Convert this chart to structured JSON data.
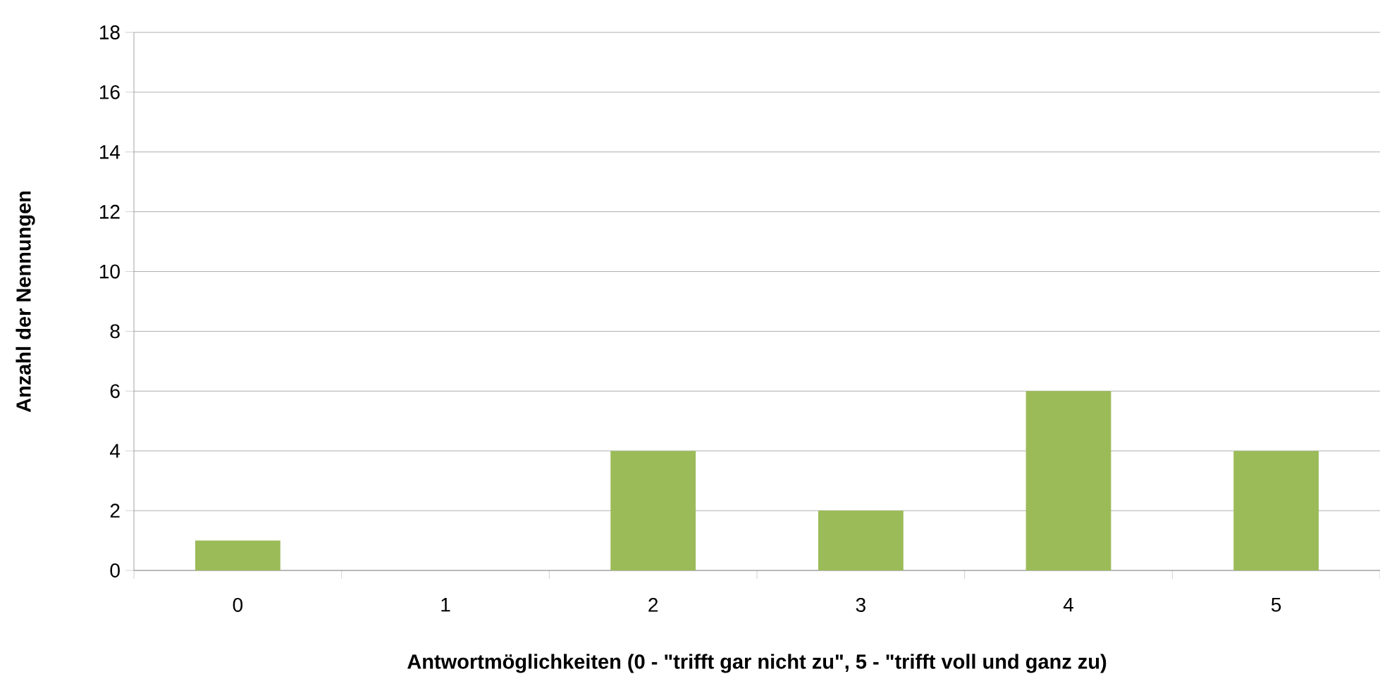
{
  "chart_data": {
    "type": "bar",
    "xlabel": "Antwortmöglichkeiten (0 - \"trifft gar nicht zu\", 5 - \"trifft voll und ganz zu)",
    "ylabel": "Anzahl der Nennungen",
    "categories": [
      "0",
      "1",
      "2",
      "3",
      "4",
      "5"
    ],
    "values": [
      1,
      0,
      4,
      2,
      6,
      4
    ],
    "color": "#9bbb59",
    "ylim": [
      0,
      18
    ],
    "yticks": [
      0,
      2,
      4,
      6,
      8,
      10,
      12,
      14,
      16,
      18
    ],
    "grid": "y"
  }
}
